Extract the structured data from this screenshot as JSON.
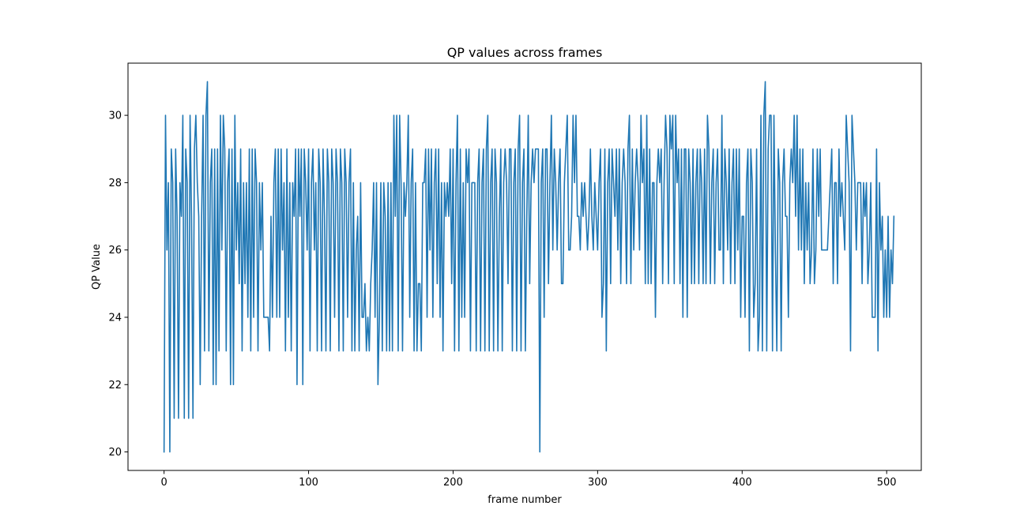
{
  "chart_data": {
    "type": "line",
    "title": "QP values across frames",
    "xlabel": "frame number",
    "ylabel": "QP Value",
    "xlim": [
      -24.95,
      523.95
    ],
    "ylim": [
      19.45,
      31.55
    ],
    "xticks": [
      0,
      100,
      200,
      300,
      400,
      500
    ],
    "yticks": [
      20,
      22,
      24,
      26,
      28,
      30
    ],
    "xtick_labels": [
      "0",
      "100",
      "200",
      "300",
      "400",
      "500"
    ],
    "ytick_labels": [
      "20",
      "22",
      "24",
      "26",
      "28",
      "30"
    ],
    "grid": false,
    "color": "#1f77b4",
    "series": [
      {
        "x_start": 0,
        "x_step": 1,
        "values": [
          20,
          30,
          26,
          28,
          20,
          29,
          28,
          21,
          29,
          27,
          21,
          28,
          27,
          30,
          21,
          29,
          28,
          21,
          30,
          27,
          21,
          29,
          30,
          28,
          27,
          22,
          27,
          30,
          23,
          30,
          31,
          23,
          28,
          29,
          22,
          29,
          22,
          29,
          23,
          30,
          26,
          30,
          29,
          23,
          28,
          29,
          22,
          29,
          22,
          30,
          26,
          28,
          25,
          29,
          23,
          28,
          25,
          28,
          24,
          29,
          23,
          29,
          24,
          29,
          28,
          23,
          28,
          26,
          28,
          24,
          24,
          24,
          24,
          23,
          27,
          24,
          28,
          29,
          24,
          29,
          24,
          29,
          26,
          28,
          23,
          29,
          24,
          28,
          23,
          28,
          27,
          29,
          22,
          29,
          27,
          29,
          22,
          29,
          28,
          26,
          29,
          23,
          28,
          29,
          26,
          28,
          23,
          29,
          28,
          23,
          29,
          27,
          23,
          29,
          28,
          23,
          29,
          28,
          24,
          29,
          28,
          23,
          29,
          28,
          23,
          29,
          28,
          24,
          28,
          29,
          23,
          28,
          23,
          26,
          27,
          23,
          28,
          24,
          24,
          25,
          23,
          24,
          23,
          25,
          26,
          28,
          24,
          28,
          22,
          24,
          28,
          23,
          28,
          27,
          23,
          28,
          23,
          28,
          23,
          30,
          27,
          30,
          23,
          30,
          28,
          23,
          28,
          27,
          28,
          30,
          24,
          28,
          29,
          23,
          28,
          23,
          25,
          25,
          23,
          28,
          28,
          29,
          24,
          29,
          26,
          29,
          24,
          28,
          29,
          25,
          29,
          24,
          28,
          23,
          28,
          27,
          28,
          27,
          29,
          25,
          29,
          23,
          28,
          30,
          23,
          29,
          24,
          28,
          24,
          29,
          28,
          29,
          23,
          28,
          28,
          28,
          23,
          28,
          29,
          23,
          28,
          29,
          23,
          29,
          30,
          23,
          28,
          29,
          23,
          29,
          28,
          23,
          27,
          29,
          23,
          28,
          29,
          28,
          25,
          29,
          29,
          23,
          28,
          29,
          23,
          29,
          30,
          23,
          28,
          29,
          23,
          27,
          30,
          25,
          28,
          29,
          28,
          29,
          29,
          29,
          20,
          28,
          29,
          24,
          29,
          29,
          25,
          28,
          30,
          26,
          29,
          28,
          26,
          28,
          29,
          25,
          25,
          28,
          29,
          30,
          26,
          26,
          27,
          30,
          28,
          30,
          27,
          27,
          26,
          28,
          27,
          28,
          27,
          26,
          27,
          29,
          27,
          26,
          28,
          27,
          26,
          28,
          29,
          24,
          25,
          29,
          23,
          28,
          29,
          25,
          29,
          28,
          27,
          29,
          26,
          29,
          25,
          28,
          29,
          28,
          25,
          29,
          30,
          25,
          29,
          26,
          28,
          29,
          28,
          26,
          30,
          28,
          29,
          25,
          30,
          25,
          29,
          25,
          28,
          28,
          24,
          28,
          29,
          28,
          29,
          25,
          28,
          30,
          29,
          25,
          30,
          29,
          30,
          25,
          30,
          28,
          29,
          25,
          29,
          24,
          29,
          29,
          24,
          29,
          28,
          25,
          29,
          25,
          28,
          29,
          25,
          29,
          28,
          25,
          29,
          25,
          30,
          29,
          25,
          28,
          29,
          25,
          28,
          29,
          26,
          26,
          30,
          25,
          29,
          28,
          26,
          29,
          25,
          28,
          29,
          25,
          29,
          26,
          29,
          24,
          27,
          27,
          24,
          28,
          29,
          23,
          29,
          28,
          24,
          25,
          29,
          23,
          24,
          30,
          23,
          30,
          31,
          23,
          29,
          30,
          30,
          23,
          30,
          26,
          23,
          29,
          28,
          23,
          28,
          29,
          27,
          27,
          24,
          28,
          29,
          28,
          30,
          27,
          30,
          26,
          29,
          26,
          29,
          25,
          28,
          26,
          28,
          25,
          26,
          29,
          25,
          26,
          29,
          27,
          29,
          26,
          26,
          26,
          26,
          26,
          27,
          28,
          29,
          25,
          28,
          28,
          25,
          29,
          27,
          28,
          27,
          26,
          30,
          29,
          28,
          23,
          30,
          29,
          28,
          26,
          28,
          28,
          28,
          25,
          28,
          27,
          28,
          25,
          26,
          28,
          24,
          24,
          24,
          29,
          23,
          28,
          26,
          27,
          24,
          26,
          24,
          27,
          24,
          26,
          25,
          27
        ]
      }
    ]
  }
}
